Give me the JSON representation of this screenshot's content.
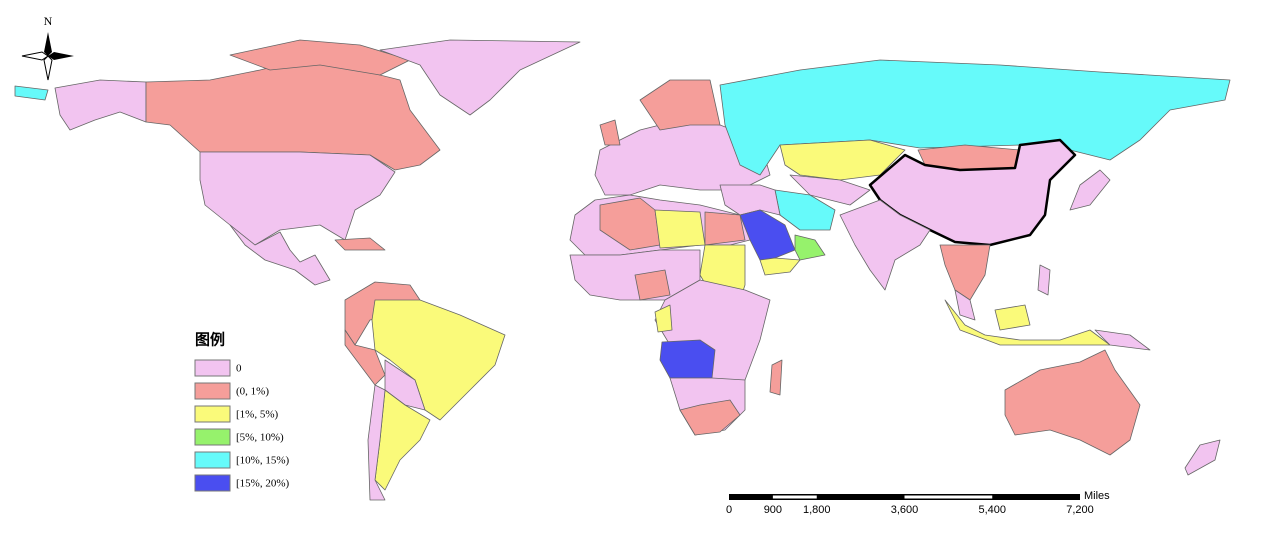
{
  "north": "N",
  "legend": {
    "title": "图例",
    "items": [
      {
        "label": "0",
        "color": "#f2c4f0"
      },
      {
        "label": "(0, 1%)",
        "color": "#f59e9a"
      },
      {
        "label": "[1%, 5%)",
        "color": "#fafa7a"
      },
      {
        "label": "[5%, 10%)",
        "color": "#96f26c"
      },
      {
        "label": "[10%, 15%)",
        "color": "#66fafa"
      },
      {
        "label": "[15%, 20%)",
        "color": "#4a4ef0"
      }
    ]
  },
  "scale": {
    "unit": "Miles",
    "ticks": [
      {
        "value": 0,
        "label": "0"
      },
      {
        "value": 900,
        "label": "900"
      },
      {
        "value": 1800,
        "label": "1,800"
      },
      {
        "value": 3600,
        "label": "3,600"
      },
      {
        "value": 5400,
        "label": "5,400"
      },
      {
        "value": 7200,
        "label": "7,200"
      }
    ]
  }
}
